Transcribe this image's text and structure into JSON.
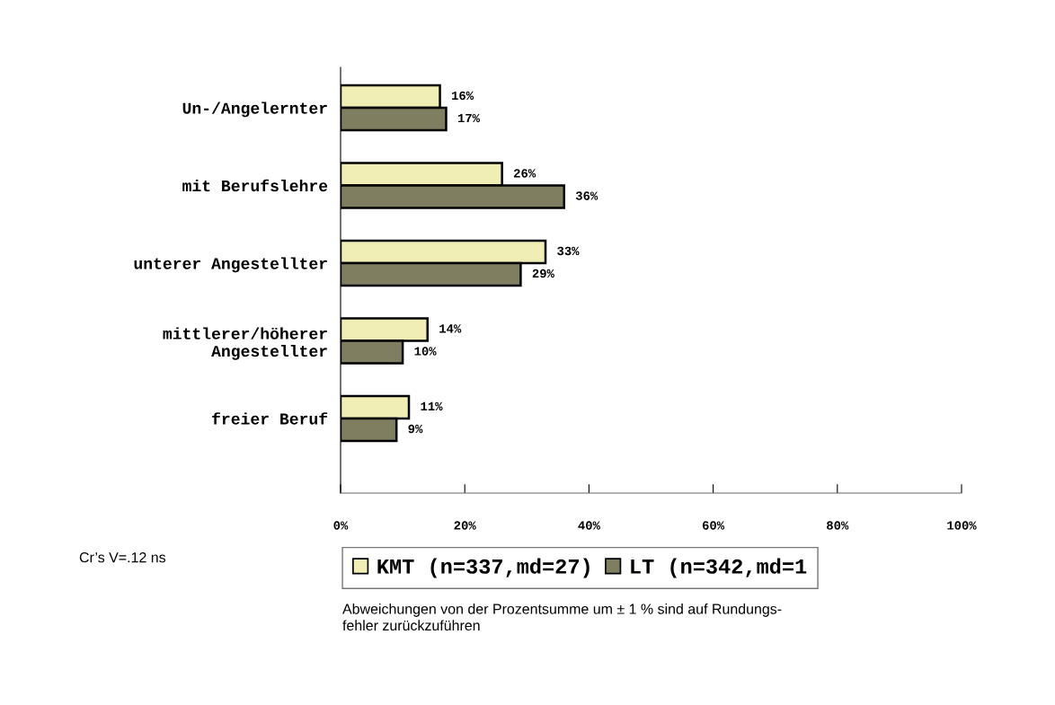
{
  "chart_data": {
    "type": "bar",
    "orientation": "horizontal",
    "categories": [
      "Un-/Angelernter",
      "mit Berufslehre",
      "unterer Angestellter",
      "mittlerer/höherer\nAngestellter",
      "freier Beruf"
    ],
    "series": [
      {
        "name": "KMT (n=337,md=27)",
        "color": "#f0eeb4",
        "values": [
          16,
          26,
          33,
          14,
          11
        ],
        "value_labels": [
          "16%",
          "26%",
          "33%",
          "14%",
          "11%"
        ]
      },
      {
        "name": "LT (n=342,md=1",
        "color": "#807e60",
        "values": [
          17,
          36,
          29,
          10,
          9
        ],
        "value_labels": [
          "17%",
          "36%",
          "29%",
          "10%",
          "9%"
        ]
      }
    ],
    "xlim": [
      0,
      100
    ],
    "xticks": [
      {
        "value": 0,
        "label": "0%"
      },
      {
        "value": 20,
        "label": "20%"
      },
      {
        "value": 40,
        "label": "40%"
      },
      {
        "value": 60,
        "label": "60%"
      },
      {
        "value": 80,
        "label": "80%"
      },
      {
        "value": 100,
        "label": "100%"
      }
    ],
    "legend": "bottom",
    "annotations": [
      "Cr’s V=.12 ns",
      "Abweichungen von der Prozentsumme um ± 1 % sind auf Rundungs-\nfehler zurückzuführen"
    ]
  }
}
